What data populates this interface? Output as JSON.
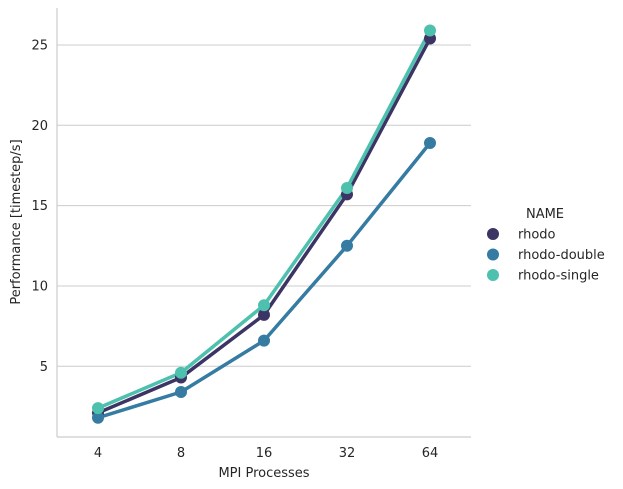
{
  "chart_data": {
    "type": "line",
    "categories": [
      "4",
      "8",
      "16",
      "32",
      "64"
    ],
    "xlabel": "MPI Processes",
    "ylabel": "Performance [timestep/s]",
    "ylim": [
      0.6,
      27.3
    ],
    "yticks": [
      5,
      10,
      15,
      20,
      25
    ],
    "grid": "horizontal",
    "legend": {
      "title": "NAME",
      "placement": "right"
    },
    "series": [
      {
        "name": "rhodo",
        "color": "#3c3465",
        "values": [
          2.1,
          4.3,
          8.2,
          15.7,
          25.4
        ]
      },
      {
        "name": "rhodo-double",
        "color": "#357ba2",
        "values": [
          1.8,
          3.4,
          6.6,
          12.5,
          18.9
        ]
      },
      {
        "name": "rhodo-single",
        "color": "#4dc1ad",
        "values": [
          2.4,
          4.6,
          8.8,
          16.1,
          25.9
        ]
      }
    ]
  }
}
